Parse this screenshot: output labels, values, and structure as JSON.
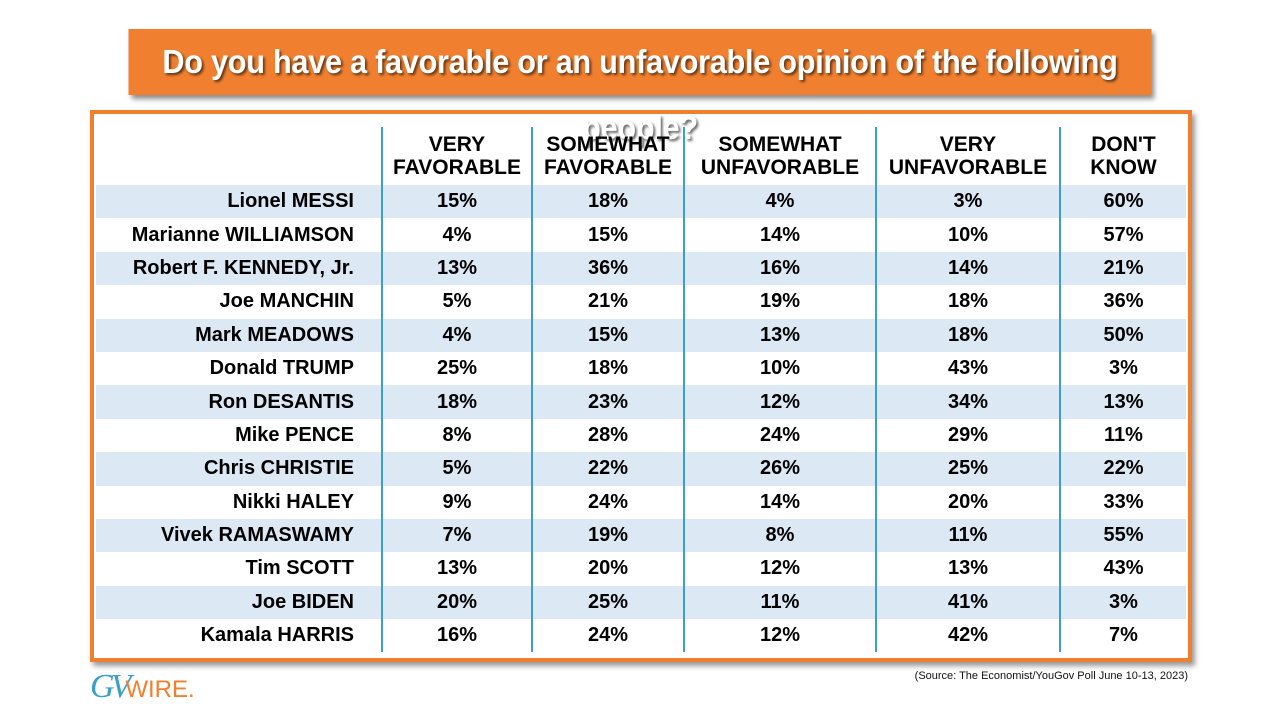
{
  "title": "Do you have a favorable or an unfavorable opinion of the following people?",
  "source": "(Source: The Economist/YouGov Poll June 10-13, 2023)",
  "logo": {
    "g": "G",
    "v": "V",
    "wire": "WIRE."
  },
  "colors": {
    "accent": "#F08030",
    "stripe": "#DCE8F3",
    "divider": "#3aa0c8"
  },
  "chart_data": {
    "type": "table",
    "title": "Do you have a favorable or an unfavorable opinion of the following people?",
    "columns": [
      [
        "VERY",
        "FAVORABLE"
      ],
      [
        "SOMEWHAT",
        "FAVORABLE"
      ],
      [
        "SOMEWHAT",
        "UNFAVORABLE"
      ],
      [
        "VERY",
        "UNFAVORABLE"
      ],
      [
        "DON'T",
        "KNOW"
      ]
    ],
    "rows": [
      {
        "name": "Lionel MESSI",
        "values": [
          "15%",
          "18%",
          "4%",
          "3%",
          "60%"
        ]
      },
      {
        "name": "Marianne WILLIAMSON",
        "values": [
          "4%",
          "15%",
          "14%",
          "10%",
          "57%"
        ]
      },
      {
        "name": "Robert F. KENNEDY, Jr.",
        "values": [
          "13%",
          "36%",
          "16%",
          "14%",
          "21%"
        ]
      },
      {
        "name": "Joe MANCHIN",
        "values": [
          "5%",
          "21%",
          "19%",
          "18%",
          "36%"
        ]
      },
      {
        "name": "Mark MEADOWS",
        "values": [
          "4%",
          "15%",
          "13%",
          "18%",
          "50%"
        ]
      },
      {
        "name": "Donald TRUMP",
        "values": [
          "25%",
          "18%",
          "10%",
          "43%",
          "3%"
        ]
      },
      {
        "name": "Ron DESANTIS",
        "values": [
          "18%",
          "23%",
          "12%",
          "34%",
          "13%"
        ]
      },
      {
        "name": "Mike PENCE",
        "values": [
          "8%",
          "28%",
          "24%",
          "29%",
          "11%"
        ]
      },
      {
        "name": "Chris CHRISTIE",
        "values": [
          "5%",
          "22%",
          "26%",
          "25%",
          "22%"
        ]
      },
      {
        "name": "Nikki HALEY",
        "values": [
          "9%",
          "24%",
          "14%",
          "20%",
          "33%"
        ]
      },
      {
        "name": "Vivek RAMASWAMY",
        "values": [
          "7%",
          "19%",
          "8%",
          "11%",
          "55%"
        ]
      },
      {
        "name": "Tim SCOTT",
        "values": [
          "13%",
          "20%",
          "12%",
          "13%",
          "43%"
        ]
      },
      {
        "name": "Joe BIDEN",
        "values": [
          "20%",
          "25%",
          "11%",
          "41%",
          "3%"
        ]
      },
      {
        "name": "Kamala HARRIS",
        "values": [
          "16%",
          "24%",
          "12%",
          "42%",
          "7%"
        ]
      }
    ]
  }
}
